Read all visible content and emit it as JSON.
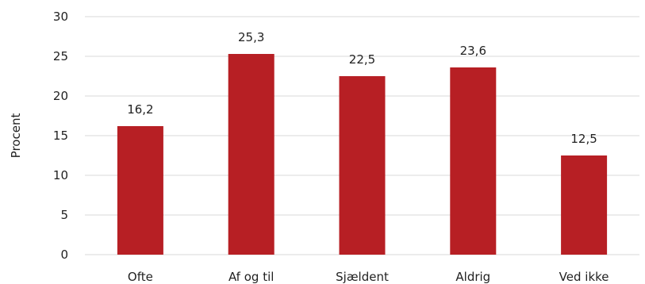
{
  "chart_data": {
    "type": "bar",
    "categories": [
      "Ofte",
      "Af og til",
      "Sjældent",
      "Aldrig",
      "Ved ikke"
    ],
    "values": [
      16.2,
      25.3,
      22.5,
      23.6,
      12.5
    ],
    "data_labels": [
      "16,2",
      "25,3",
      "22,5",
      "23,6",
      "12,5"
    ],
    "title": "",
    "xlabel": "",
    "ylabel": "Procent",
    "ylim": [
      0,
      30
    ],
    "yticks": [
      0,
      5,
      10,
      15,
      20,
      25,
      30
    ],
    "ytick_labels": [
      "0",
      "5",
      "10",
      "15",
      "20",
      "25",
      "30"
    ],
    "grid": true,
    "legend": "none",
    "bar_color": "#B71F24"
  }
}
